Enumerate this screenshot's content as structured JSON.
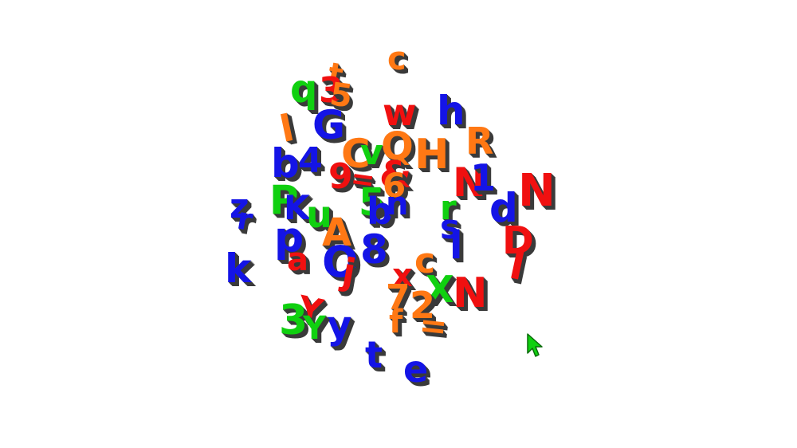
{
  "colors": {
    "red": "#f01010",
    "blue": "#1414e6",
    "green": "#10d010",
    "orange": "#ff7814",
    "shade": "#3a3a3a",
    "background": "#ffffff"
  },
  "cursor": {
    "icon": "arrow-pointer-icon",
    "color": "#10d010"
  },
  "letters": [
    {
      "ch": "c",
      "color": "orange"
    },
    {
      "ch": "t",
      "color": "orange"
    },
    {
      "ch": "q",
      "color": "green"
    },
    {
      "ch": "3",
      "color": "red"
    },
    {
      "ch": "5",
      "color": "orange"
    },
    {
      "ch": "G",
      "color": "blue"
    },
    {
      "ch": "l",
      "color": "orange"
    },
    {
      "ch": "w",
      "color": "red"
    },
    {
      "ch": "h",
      "color": "blue"
    },
    {
      "ch": "R",
      "color": "orange"
    },
    {
      "ch": "b",
      "color": "blue"
    },
    {
      "ch": "4",
      "color": "blue"
    },
    {
      "ch": "C",
      "color": "orange"
    },
    {
      "ch": "v",
      "color": "green"
    },
    {
      "ch": "Q",
      "color": "orange"
    },
    {
      "ch": "H",
      "color": "orange"
    },
    {
      "ch": "9",
      "color": "red"
    },
    {
      "ch": "=",
      "color": "red"
    },
    {
      "ch": "&",
      "color": "red"
    },
    {
      "ch": "6",
      "color": "orange"
    },
    {
      "ch": "N",
      "color": "red"
    },
    {
      "ch": "1",
      "color": "blue"
    },
    {
      "ch": "N",
      "color": "red"
    },
    {
      "ch": "z",
      "color": "blue"
    },
    {
      "ch": "r",
      "color": "blue"
    },
    {
      "ch": "P",
      "color": "green"
    },
    {
      "ch": "K",
      "color": "blue"
    },
    {
      "ch": "u",
      "color": "green"
    },
    {
      "ch": "5",
      "color": "green"
    },
    {
      "ch": "b",
      "color": "blue"
    },
    {
      "ch": "n",
      "color": "blue"
    },
    {
      "ch": "r",
      "color": "green"
    },
    {
      "ch": "d",
      "color": "blue"
    },
    {
      "ch": "s",
      "color": "blue"
    },
    {
      "ch": "p",
      "color": "blue"
    },
    {
      "ch": "A",
      "color": "orange"
    },
    {
      "ch": "a",
      "color": "red"
    },
    {
      "ch": "O",
      "color": "blue"
    },
    {
      "ch": "8",
      "color": "blue"
    },
    {
      "ch": "j",
      "color": "red"
    },
    {
      "ch": "l",
      "color": "blue"
    },
    {
      "ch": "D",
      "color": "red"
    },
    {
      "ch": "I",
      "color": "red"
    },
    {
      "ch": "k",
      "color": "blue"
    },
    {
      "ch": "c",
      "color": "orange"
    },
    {
      "ch": "x",
      "color": "red"
    },
    {
      "ch": "7",
      "color": "orange"
    },
    {
      "ch": "X",
      "color": "green"
    },
    {
      "ch": "N",
      "color": "red"
    },
    {
      "ch": "2",
      "color": "orange"
    },
    {
      "ch": "Y",
      "color": "red"
    },
    {
      "ch": "3",
      "color": "green"
    },
    {
      "ch": "y",
      "color": "blue"
    },
    {
      "ch": "Y",
      "color": "green"
    },
    {
      "ch": "f",
      "color": "orange"
    },
    {
      "ch": "=",
      "color": "orange"
    },
    {
      "ch": "t",
      "color": "blue"
    },
    {
      "ch": "e",
      "color": "blue"
    }
  ]
}
